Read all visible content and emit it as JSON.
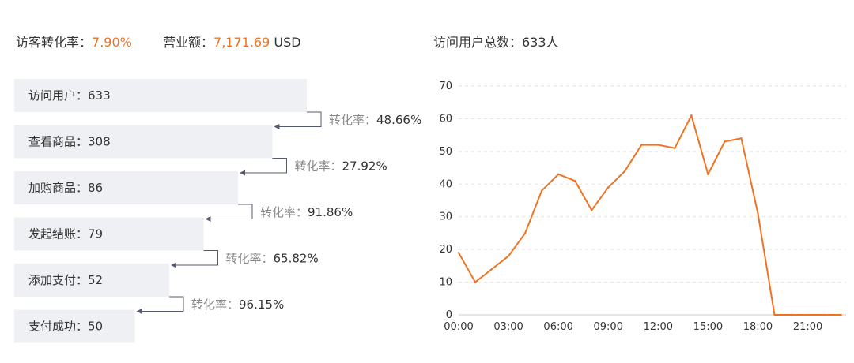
{
  "stats": {
    "conversion_label": "访客转化率：",
    "conversion_value": "7.90%",
    "revenue_label": "营业额：",
    "revenue_value": "7,171.69",
    "revenue_unit": " USD",
    "visitors_total": "访问用户总数：633人"
  },
  "funnel": {
    "rate_prefix": "转化率：",
    "steps": [
      {
        "label": "访问用户：633",
        "value": 633
      },
      {
        "label": "查看商品：308",
        "value": 308
      },
      {
        "label": "加购商品：86",
        "value": 86
      },
      {
        "label": "发起结账：79",
        "value": 79
      },
      {
        "label": "添加支付：52",
        "value": 52
      },
      {
        "label": "支付成功：50",
        "value": 50
      }
    ],
    "rates": [
      "48.66%",
      "27.92%",
      "91.86%",
      "65.82%",
      "96.15%"
    ],
    "colors": {
      "bar": "#eff0f3",
      "arrow": "#555a6e"
    }
  },
  "chart_data": {
    "type": "line",
    "title": "",
    "xlabel": "",
    "ylabel": "",
    "x": [
      "00:00",
      "01:00",
      "02:00",
      "03:00",
      "04:00",
      "05:00",
      "06:00",
      "07:00",
      "08:00",
      "09:00",
      "10:00",
      "11:00",
      "12:00",
      "13:00",
      "14:00",
      "15:00",
      "16:00",
      "17:00",
      "18:00",
      "19:00",
      "20:00",
      "21:00",
      "22:00",
      "23:00"
    ],
    "x_tick_labels": [
      "00:00",
      "03:00",
      "06:00",
      "09:00",
      "12:00",
      "15:00",
      "18:00",
      "21:00"
    ],
    "series": [
      {
        "values": [
          19,
          10,
          14,
          18,
          25,
          38,
          43,
          41,
          32,
          39,
          44,
          52,
          52,
          51,
          61,
          43,
          53,
          54,
          31,
          0,
          0,
          0,
          0,
          0
        ],
        "color": "#f07322"
      }
    ],
    "ylim": [
      0,
      70
    ],
    "y_ticks": [
      0,
      10,
      20,
      30,
      40,
      50,
      60,
      70
    ],
    "grid": true,
    "legend": "none"
  }
}
